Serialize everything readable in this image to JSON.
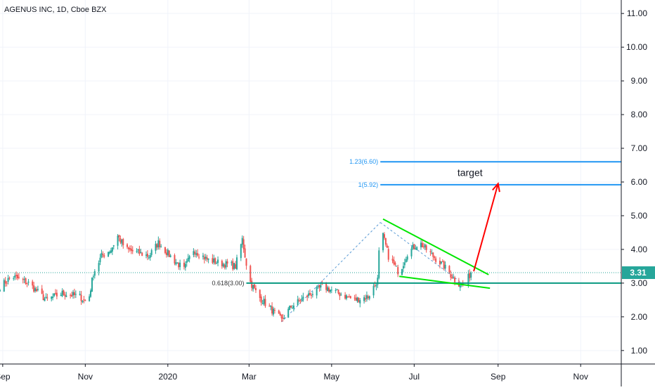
{
  "header": {
    "symbol_title": "AGENUS INC, 1D, Cboe BZX"
  },
  "colors": {
    "up": "#26a69a",
    "down": "#ef5350",
    "grid": "#f0f3fa",
    "axis": "#131722",
    "fib": "#2196f3",
    "wedge": "#00e600",
    "support": "#089981",
    "arrow": "#ff0000",
    "price_badge": "#26a69a",
    "dashed": "#5b9bd5"
  },
  "chart_data": {
    "type": "candlestick",
    "title": "AGENUS INC, 1D, Cboe BZX",
    "y_ticks": [
      "11.00",
      "10.00",
      "9.00",
      "8.00",
      "7.00",
      "6.00",
      "5.00",
      "4.00",
      "3.00",
      "2.00",
      "1.00"
    ],
    "y_tick_values": [
      11,
      10,
      9,
      8,
      7,
      6,
      5,
      4,
      3,
      2,
      1
    ],
    "ylim": [
      0.6,
      11.4
    ],
    "x_ticks": [
      "Sep",
      "Nov",
      "2020",
      "Mar",
      "May",
      "Jul",
      "Sep",
      "Nov"
    ],
    "x_tick_values": [
      "2019-09-01",
      "2019-11-01",
      "2020-01-01",
      "2020-03-01",
      "2020-05-01",
      "2020-07-01",
      "2020-09-01",
      "2020-11-01"
    ],
    "xlim": [
      "2019-08-30",
      "2020-12-01"
    ],
    "grid": true,
    "last_price": "3.31",
    "last_price_value": 3.31,
    "price_path": [
      [
        "2019-08-30",
        2.9
      ],
      [
        "2019-09-08",
        3.2
      ],
      [
        "2019-09-20",
        3.0
      ],
      [
        "2019-10-03",
        2.5
      ],
      [
        "2019-10-15",
        2.7
      ],
      [
        "2019-10-28",
        2.6
      ],
      [
        "2019-11-03",
        2.4
      ],
      [
        "2019-11-07",
        3.3
      ],
      [
        "2019-11-13",
        3.8
      ],
      [
        "2019-11-20",
        4.0
      ],
      [
        "2019-11-25",
        4.4
      ],
      [
        "2019-12-01",
        4.0
      ],
      [
        "2019-12-10",
        3.9
      ],
      [
        "2019-12-18",
        3.8
      ],
      [
        "2019-12-25",
        4.2
      ],
      [
        "2020-01-05",
        3.7
      ],
      [
        "2020-01-13",
        3.4
      ],
      [
        "2020-01-20",
        4.0
      ],
      [
        "2020-01-30",
        3.7
      ],
      [
        "2020-02-08",
        3.6
      ],
      [
        "2020-02-20",
        3.5
      ],
      [
        "2020-02-25",
        4.3
      ],
      [
        "2020-03-01",
        3.1
      ],
      [
        "2020-03-08",
        2.6
      ],
      [
        "2020-03-18",
        2.2
      ],
      [
        "2020-03-25",
        1.9
      ],
      [
        "2020-04-01",
        2.3
      ],
      [
        "2020-04-12",
        2.6
      ],
      [
        "2020-04-25",
        2.9
      ],
      [
        "2020-05-06",
        2.7
      ],
      [
        "2020-05-18",
        2.5
      ],
      [
        "2020-05-28",
        2.6
      ],
      [
        "2020-06-04",
        3.1
      ],
      [
        "2020-06-06",
        4.7
      ],
      [
        "2020-06-12",
        3.8
      ],
      [
        "2020-06-20",
        3.3
      ],
      [
        "2020-06-26",
        3.9
      ],
      [
        "2020-07-05",
        4.2
      ],
      [
        "2020-07-15",
        3.8
      ],
      [
        "2020-07-23",
        3.5
      ],
      [
        "2020-08-02",
        3.0
      ],
      [
        "2020-08-07",
        2.95
      ],
      [
        "2020-08-12",
        3.31
      ]
    ],
    "annotations": {
      "fib_levels": [
        {
          "label": "1.23(6.60)",
          "value": 6.6,
          "x_start": "2020-06-06",
          "x_end": "2020-12-01"
        },
        {
          "label": "1(5.92)",
          "value": 5.92,
          "x_start": "2020-06-06",
          "x_end": "2020-12-01"
        },
        {
          "label": "0.618(3.00)",
          "value": 3.0,
          "x_start": "2020-02-28",
          "x_end": "2020-12-01"
        }
      ],
      "target_text": "target",
      "target_arrow": {
        "from": [
          "2020-08-14",
          3.35
        ],
        "to": [
          "2020-09-01",
          5.95
        ]
      },
      "wedge_upper": {
        "from": [
          "2020-06-08",
          4.9
        ],
        "to": [
          "2020-08-25",
          3.25
        ]
      },
      "wedge_lower": {
        "from": [
          "2020-06-20",
          3.2
        ],
        "to": [
          "2020-08-26",
          2.85
        ]
      },
      "dashed_legs": [
        {
          "from": [
            "2020-03-25",
            1.85
          ],
          "to": [
            "2020-06-06",
            4.8
          ]
        },
        {
          "from": [
            "2020-06-06",
            4.8
          ],
          "to": [
            "2020-08-07",
            2.95
          ]
        }
      ]
    }
  }
}
